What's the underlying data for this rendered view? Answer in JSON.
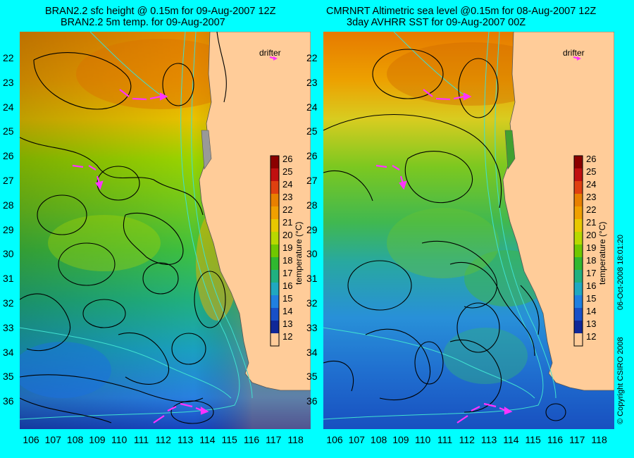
{
  "left": {
    "title1": "BRAN2.2 sfc height @ 0.15m for 09-Aug-2007 12Z",
    "title2": "BRAN2.2 5m temp. for 09-Aug-2007"
  },
  "right": {
    "title1": "CMRNRT Altimetric sea level  @0.15m  for 08-Aug-2007 12Z",
    "title2": "3day AVHRR SST for 09-Aug-2007 00Z"
  },
  "lat_labels": [
    "22",
    "23",
    "24",
    "25",
    "26",
    "27",
    "28",
    "29",
    "30",
    "31",
    "32",
    "33",
    "34",
    "35",
    "36"
  ],
  "lon_labels": [
    "106",
    "107",
    "108",
    "109",
    "110",
    "111",
    "112",
    "113",
    "114",
    "115",
    "116",
    "117",
    "118"
  ],
  "colorbar": {
    "ticks": [
      "26",
      "25",
      "24",
      "23",
      "22",
      "21",
      "20",
      "19",
      "18",
      "17",
      "16",
      "15",
      "14",
      "13",
      "12"
    ],
    "title": "temperature (°C)"
  },
  "drifter_label": "drifter",
  "copyright": "© Copyright CSIRO 2008",
  "timestamp": "06-Oct-2008 18:01:20",
  "colors": {
    "background": "#00ffff",
    "land": "#ffcc99",
    "drifter": "#ff33ff",
    "contour": "#000000",
    "isobath": "#40e0d0"
  }
}
